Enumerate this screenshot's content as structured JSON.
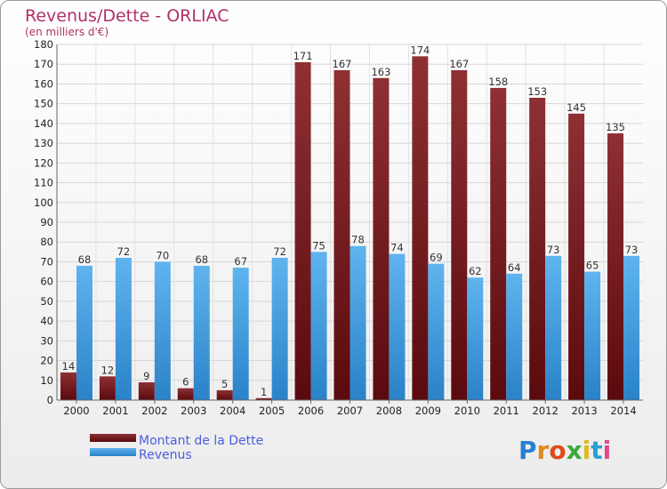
{
  "chart_data": {
    "type": "bar",
    "title": "Revenus/Dette - ORLIAC",
    "subtitle": "(en milliers d'€)",
    "categories": [
      "2000",
      "2001",
      "2002",
      "2003",
      "2004",
      "2005",
      "2006",
      "2007",
      "2008",
      "2009",
      "2010",
      "2011",
      "2012",
      "2013",
      "2014"
    ],
    "series": [
      {
        "name": "Montant de la Dette",
        "color": "#7a1a1e",
        "values": [
          14,
          12,
          9,
          6,
          5,
          1,
          171,
          167,
          163,
          174,
          167,
          158,
          153,
          145,
          135
        ]
      },
      {
        "name": "Revenus",
        "color": "#3f9be0",
        "values": [
          68,
          72,
          70,
          68,
          67,
          72,
          75,
          78,
          74,
          69,
          62,
          64,
          73,
          65,
          73
        ]
      }
    ],
    "ylim": [
      0,
      180
    ],
    "yticks": [
      0,
      10,
      20,
      30,
      40,
      50,
      60,
      70,
      80,
      90,
      100,
      110,
      120,
      130,
      140,
      150,
      160,
      170,
      180
    ],
    "grid": true,
    "legend_position": "bottom-left"
  },
  "logo": {
    "letters": [
      "P",
      "r",
      "o",
      "x",
      "i",
      "t",
      "i"
    ],
    "colors": [
      "#2a7fd0",
      "#e08a1c",
      "#e04a1c",
      "#3aa83a",
      "#e0b81c",
      "#2a9fd0",
      "#e04a8a"
    ]
  }
}
